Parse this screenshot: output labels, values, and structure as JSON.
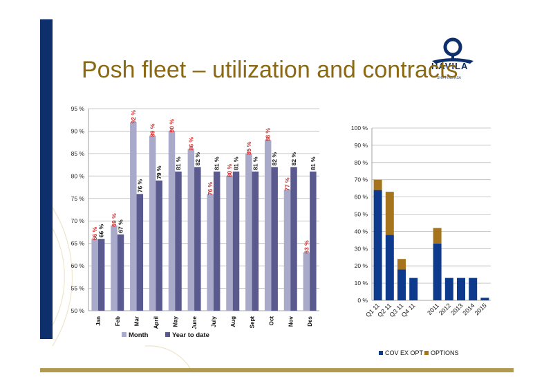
{
  "title": "Posh fleet – utilization and contracts",
  "logo": {
    "name": "HAVILA",
    "tagline": "SHIPPING ASA"
  },
  "colors": {
    "title": "#8b6914",
    "band": "#0d2f6b",
    "month_bar": "#a9a9c9",
    "ytd_bar": "#5a5a8e",
    "cov_ex_opt": "#0d3a8c",
    "options": "#a6741c",
    "month_label": "#d42a2a"
  },
  "chart_data": [
    {
      "type": "bar",
      "categories": [
        "Jan",
        "Feb",
        "Mar",
        "April",
        "May",
        "June",
        "July",
        "Aug",
        "Sept",
        "Oct",
        "Nov",
        "Des"
      ],
      "series": [
        {
          "name": "Month",
          "values": [
            66,
            69,
            92,
            89,
            90,
            86,
            76,
            80,
            85,
            88,
            77,
            63
          ],
          "labels": [
            "66 %",
            "69 %",
            "92 %",
            "89 %",
            "90 %",
            "86 %",
            "76 %",
            "80 %",
            "85 %",
            "88 %",
            "77 %",
            "63 %"
          ]
        },
        {
          "name": "Year to date",
          "values": [
            66,
            67,
            76,
            79,
            81,
            82,
            81,
            81,
            81,
            82,
            82,
            81
          ],
          "labels": [
            "66 %",
            "67 %",
            "76 %",
            "79 %",
            "81 %",
            "82 %",
            "81 %",
            "81 %",
            "81 %",
            "82 %",
            "82 %",
            "81 %"
          ]
        }
      ],
      "ylim": [
        50,
        95
      ],
      "ticks": [
        "50 %",
        "55 %",
        "60 %",
        "65 %",
        "70 %",
        "75 %",
        "80 %",
        "85 %",
        "90 %",
        "95 %"
      ],
      "grid": true,
      "legend": "bottom"
    },
    {
      "type": "bar",
      "stacked": true,
      "categories": [
        "Q1 11",
        "Q2 11",
        "Q3 11",
        "Q4 11",
        "",
        "2011",
        "2012",
        "2013",
        "2014",
        "2015"
      ],
      "series": [
        {
          "name": "COV EX OPT",
          "values": [
            64,
            38,
            18,
            13,
            0,
            33,
            13,
            13,
            13,
            1.5
          ]
        },
        {
          "name": "OPTIONS",
          "values": [
            6,
            25,
            6,
            0,
            0,
            9,
            0,
            0,
            0,
            0
          ]
        }
      ],
      "ylim": [
        0,
        100
      ],
      "ticks": [
        "0 %",
        "10 %",
        "20 %",
        "30 %",
        "40 %",
        "50 %",
        "60 %",
        "70 %",
        "80 %",
        "90 %",
        "100 %"
      ],
      "grid": true,
      "legend": "bottom"
    }
  ]
}
